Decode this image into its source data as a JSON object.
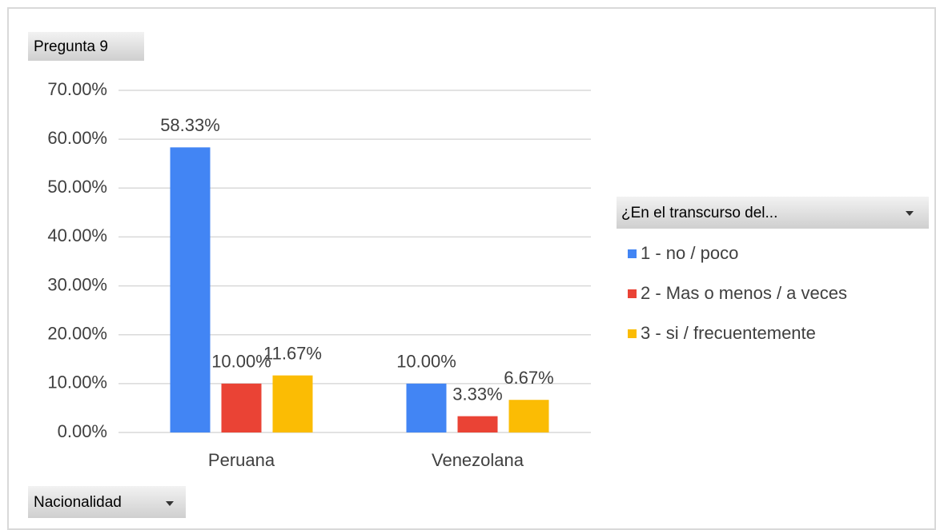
{
  "chart_data": {
    "type": "bar",
    "title": "Pregunta 9",
    "legend_title": "¿En el transcurso del...",
    "x_label": "Nacionalidad",
    "categories": [
      "Peruana",
      "Venezolana"
    ],
    "series": [
      {
        "name": "1 - no / poco",
        "color": "#4285f4",
        "values": [
          58.33,
          10
        ],
        "value_labels": [
          "58.33%",
          "10.00%"
        ]
      },
      {
        "name": "2 - Mas o menos / a veces",
        "color": "#ea4335",
        "values": [
          10,
          3.33
        ],
        "value_labels": [
          "10.00%",
          "3.33%"
        ]
      },
      {
        "name": "3 - si / frecuentemente",
        "color": "#fbbc04",
        "values": [
          11.67,
          6.67
        ],
        "value_labels": [
          "11.67%",
          "6.67%"
        ]
      }
    ],
    "ylim": [
      0,
      70
    ],
    "yticks": [
      {
        "value": 0,
        "label": "0.00%"
      },
      {
        "value": 10,
        "label": "10.00%"
      },
      {
        "value": 20,
        "label": "20.00%"
      },
      {
        "value": 30,
        "label": "30.00%"
      },
      {
        "value": 40,
        "label": "40.00%"
      },
      {
        "value": 50,
        "label": "50.00%"
      },
      {
        "value": 60,
        "label": "60.00%"
      },
      {
        "value": 70,
        "label": "70.00%"
      }
    ],
    "grid": true
  }
}
